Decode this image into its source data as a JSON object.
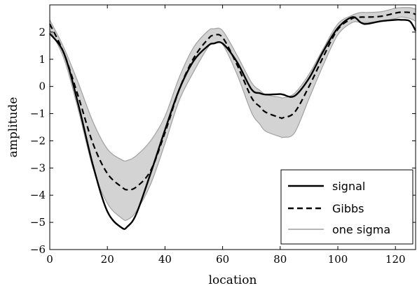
{
  "chart_data": {
    "type": "line",
    "title": "",
    "xlabel": "location",
    "ylabel": "amplitude",
    "xlim": [
      0,
      127
    ],
    "ylim": [
      -6,
      3
    ],
    "grid": false,
    "legend_position": "lower-right",
    "x_ticks": [
      0,
      20,
      40,
      60,
      80,
      100,
      120
    ],
    "y_ticks": [
      -6,
      -5,
      -4,
      -3,
      -2,
      -1,
      0,
      1,
      2
    ],
    "x_tick_labels": [
      "0",
      "20",
      "40",
      "60",
      "80",
      "100",
      "120"
    ],
    "y_tick_labels": [
      "−6",
      "−5",
      "−4",
      "−3",
      "−2",
      "−1",
      "0",
      "1",
      "2"
    ],
    "legend": [
      "signal",
      "Gibbs",
      "one sigma"
    ],
    "colors": {
      "signal": "#000000",
      "gibbs": "#000000",
      "band_fill": "#d3d3d3",
      "band_edge": "#a0a0a0"
    },
    "x": [
      0,
      5,
      10,
      15,
      20,
      25,
      27,
      30,
      35,
      40,
      45,
      50,
      55,
      57,
      60,
      65,
      70,
      73,
      75,
      80,
      81,
      85,
      90,
      95,
      100,
      105,
      108,
      110,
      115,
      120,
      122,
      125,
      127
    ],
    "series": [
      {
        "name": "signal",
        "style": "solid",
        "values": [
          1.95,
          1.2,
          -0.7,
          -2.9,
          -4.6,
          -5.2,
          -5.15,
          -4.7,
          -3.2,
          -1.6,
          -0.1,
          0.95,
          1.5,
          1.58,
          1.58,
          0.9,
          -0.1,
          -0.25,
          -0.3,
          -0.28,
          -0.3,
          -0.35,
          0.3,
          1.3,
          2.15,
          2.55,
          2.35,
          2.3,
          2.4,
          2.45,
          2.45,
          2.4,
          2.05
        ]
      },
      {
        "name": "Gibbs",
        "style": "dashed",
        "values": [
          2.3,
          1.2,
          -0.4,
          -2.1,
          -3.2,
          -3.7,
          -3.8,
          -3.7,
          -3.1,
          -1.7,
          -0.1,
          1.05,
          1.75,
          1.88,
          1.8,
          0.8,
          -0.4,
          -0.75,
          -0.95,
          -1.15,
          -1.15,
          -0.95,
          0.0,
          1.1,
          2.1,
          2.5,
          2.55,
          2.55,
          2.58,
          2.7,
          2.73,
          2.72,
          2.65
        ]
      },
      {
        "name": "one sigma",
        "style": "band",
        "lower": [
          2.1,
          1.0,
          -0.9,
          -3.0,
          -4.3,
          -4.85,
          -4.9,
          -4.6,
          -3.6,
          -2.1,
          -0.5,
          0.55,
          1.45,
          1.6,
          1.55,
          0.45,
          -0.95,
          -1.4,
          -1.65,
          -1.85,
          -1.87,
          -1.7,
          -0.45,
          0.8,
          1.9,
          2.35,
          2.35,
          2.35,
          2.4,
          2.5,
          2.55,
          2.5,
          2.4
        ],
        "upper": [
          2.45,
          1.4,
          0.1,
          -1.3,
          -2.3,
          -2.7,
          -2.72,
          -2.55,
          -2.0,
          -1.1,
          0.35,
          1.45,
          2.05,
          2.12,
          2.05,
          1.15,
          0.15,
          -0.15,
          -0.3,
          -0.4,
          -0.42,
          -0.25,
          0.45,
          1.4,
          2.3,
          2.62,
          2.72,
          2.72,
          2.75,
          2.88,
          2.9,
          2.9,
          2.85
        ]
      }
    ]
  }
}
